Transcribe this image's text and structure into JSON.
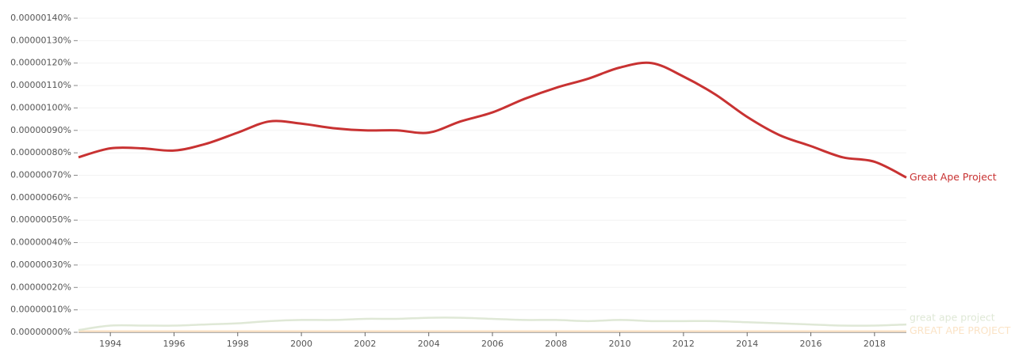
{
  "chart_data": {
    "type": "line",
    "x": [
      1993,
      1994,
      1995,
      1996,
      1997,
      1998,
      1999,
      2000,
      2001,
      2002,
      2003,
      2004,
      2005,
      2006,
      2007,
      2008,
      2009,
      2010,
      2011,
      2012,
      2013,
      2014,
      2015,
      2016,
      2017,
      2018,
      2019
    ],
    "series": [
      {
        "name": "Great Ape Project",
        "color": "#c83232",
        "values": [
          7.8e-07,
          8.2e-07,
          8.2e-07,
          8.1e-07,
          8.4e-07,
          8.9e-07,
          9.4e-07,
          9.3e-07,
          9.1e-07,
          9e-07,
          9e-07,
          8.9e-07,
          9.4e-07,
          9.8e-07,
          1.04e-06,
          1.09e-06,
          1.13e-06,
          1.18e-06,
          1.2e-06,
          1.14e-06,
          1.06e-06,
          9.6e-07,
          8.8e-07,
          8.3e-07,
          7.8e-07,
          7.6e-07,
          6.9e-07
        ]
      },
      {
        "name": "great ape project",
        "color": "#dfe8d6",
        "values": [
          1e-08,
          3e-08,
          3e-08,
          3e-08,
          3.5e-08,
          4e-08,
          5e-08,
          5.5e-08,
          5.5e-08,
          6e-08,
          6e-08,
          6.5e-08,
          6.5e-08,
          6e-08,
          5.5e-08,
          5.5e-08,
          5e-08,
          5.5e-08,
          5e-08,
          5e-08,
          5e-08,
          4.5e-08,
          4e-08,
          3.5e-08,
          3e-08,
          3e-08,
          3.5e-08
        ]
      },
      {
        "name": "GREAT APE PROJECT",
        "color": "#fbe3c6",
        "values": [
          5e-09,
          5e-09,
          5e-09,
          5e-09,
          5e-09,
          5e-09,
          5e-09,
          5e-09,
          5e-09,
          5e-09,
          5e-09,
          5e-09,
          5e-09,
          5e-09,
          5e-09,
          5e-09,
          5e-09,
          5e-09,
          5e-09,
          5e-09,
          5e-09,
          5e-09,
          5e-09,
          5e-09,
          5e-09,
          5e-09,
          5e-09
        ]
      }
    ],
    "xlim": [
      1993,
      2019
    ],
    "xticks": [
      1994,
      1996,
      1998,
      2000,
      2002,
      2004,
      2006,
      2008,
      2010,
      2012,
      2014,
      2016,
      2018
    ],
    "ylim": [
      0,
      1.4e-06
    ],
    "yticks": [
      {
        "value": 0,
        "label": "0.00000000%"
      },
      {
        "value": 1e-07,
        "label": "0.00000010%"
      },
      {
        "value": 2e-07,
        "label": "0.00000020%"
      },
      {
        "value": 3e-07,
        "label": "0.00000030%"
      },
      {
        "value": 4e-07,
        "label": "0.00000040%"
      },
      {
        "value": 5e-07,
        "label": "0.00000050%"
      },
      {
        "value": 6e-07,
        "label": "0.00000060%"
      },
      {
        "value": 7e-07,
        "label": "0.00000070%"
      },
      {
        "value": 8e-07,
        "label": "0.00000080%"
      },
      {
        "value": 9e-07,
        "label": "0.00000090%"
      },
      {
        "value": 1e-06,
        "label": "0.00000100%"
      },
      {
        "value": 1.1e-06,
        "label": "0.00000110%"
      },
      {
        "value": 1.2e-06,
        "label": "0.00000120%"
      },
      {
        "value": 1.3e-06,
        "label": "0.00000130%"
      },
      {
        "value": 1.4e-06,
        "label": "0.00000140%"
      }
    ],
    "grid": true
  }
}
